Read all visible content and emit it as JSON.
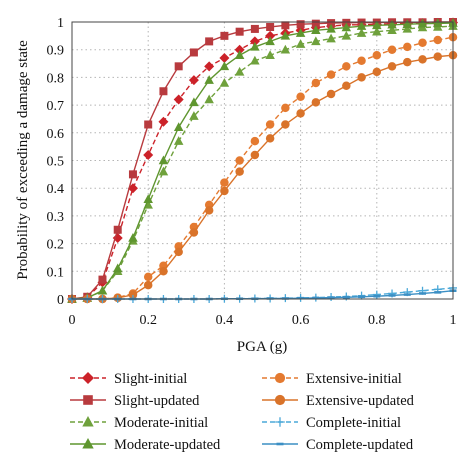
{
  "chart_data": {
    "type": "line",
    "title": "",
    "xlabel": "PGA (g)",
    "ylabel": "Probability of exceeding a damage state",
    "xlim": [
      0,
      1
    ],
    "ylim": [
      0,
      1
    ],
    "xticks": [
      0,
      0.2,
      0.4,
      0.6,
      0.8,
      1
    ],
    "xtick_labels": [
      "0",
      "0.2",
      "0.4",
      "0.6",
      "0.8",
      "1"
    ],
    "yticks": [
      0,
      0.1,
      0.2,
      0.3,
      0.4,
      0.5,
      0.6,
      0.7,
      0.8,
      0.9,
      1
    ],
    "ytick_labels": [
      "0",
      "0.1",
      "0.2",
      "0.3",
      "0.4",
      "0.5",
      "0.6",
      "0.7",
      "0.8",
      "0.9",
      "1"
    ],
    "grid": true,
    "legend_position": "bottom",
    "x": [
      0,
      0.04,
      0.08,
      0.12,
      0.16,
      0.2,
      0.24,
      0.28,
      0.32,
      0.36,
      0.4,
      0.44,
      0.48,
      0.52,
      0.56,
      0.6,
      0.64,
      0.68,
      0.72,
      0.76,
      0.8,
      0.84,
      0.88,
      0.92,
      0.96,
      1.0
    ],
    "series": [
      {
        "name": "Slight-initial",
        "color": "#cc2229",
        "marker": "diamond",
        "dash": true,
        "values": [
          0.0,
          0.006,
          0.06,
          0.22,
          0.4,
          0.52,
          0.64,
          0.72,
          0.79,
          0.84,
          0.87,
          0.9,
          0.93,
          0.95,
          0.96,
          0.97,
          0.98,
          0.985,
          0.99,
          0.99,
          0.992,
          0.994,
          0.995,
          0.996,
          0.997,
          0.998
        ]
      },
      {
        "name": "Slight-updated",
        "color": "#b83a3e",
        "marker": "square",
        "dash": false,
        "values": [
          0.0,
          0.008,
          0.07,
          0.25,
          0.45,
          0.63,
          0.75,
          0.84,
          0.89,
          0.93,
          0.95,
          0.965,
          0.975,
          0.982,
          0.988,
          0.992,
          0.994,
          0.996,
          0.997,
          0.998,
          0.998,
          0.999,
          0.999,
          0.999,
          1.0,
          1.0
        ]
      },
      {
        "name": "Moderate-initial",
        "color": "#6fa13c",
        "marker": "triangle",
        "dash": true,
        "values": [
          0.0,
          0.003,
          0.03,
          0.1,
          0.21,
          0.34,
          0.46,
          0.57,
          0.66,
          0.72,
          0.78,
          0.82,
          0.86,
          0.88,
          0.9,
          0.92,
          0.93,
          0.94,
          0.95,
          0.96,
          0.965,
          0.97,
          0.975,
          0.98,
          0.982,
          0.985
        ]
      },
      {
        "name": "Moderate-updated",
        "color": "#5f962f",
        "marker": "triangle",
        "dash": false,
        "values": [
          0.0,
          0.004,
          0.03,
          0.11,
          0.22,
          0.36,
          0.5,
          0.62,
          0.71,
          0.79,
          0.84,
          0.88,
          0.91,
          0.93,
          0.95,
          0.96,
          0.97,
          0.975,
          0.98,
          0.985,
          0.988,
          0.99,
          0.992,
          0.994,
          0.995,
          0.996
        ]
      },
      {
        "name": "Extensive-initial",
        "color": "#e47a30",
        "marker": "circle",
        "dash": true,
        "values": [
          0.0,
          0.0,
          0.0,
          0.005,
          0.02,
          0.08,
          0.12,
          0.19,
          0.26,
          0.34,
          0.42,
          0.5,
          0.57,
          0.63,
          0.69,
          0.73,
          0.78,
          0.81,
          0.84,
          0.86,
          0.88,
          0.9,
          0.91,
          0.925,
          0.935,
          0.945
        ]
      },
      {
        "name": "Extensive-updated",
        "color": "#d9732a",
        "marker": "circle",
        "dash": false,
        "values": [
          0.0,
          0.0,
          0.0,
          0.004,
          0.015,
          0.05,
          0.1,
          0.17,
          0.24,
          0.32,
          0.39,
          0.46,
          0.52,
          0.58,
          0.63,
          0.67,
          0.71,
          0.74,
          0.77,
          0.8,
          0.82,
          0.84,
          0.855,
          0.865,
          0.875,
          0.88
        ]
      },
      {
        "name": "Complete-initial",
        "color": "#4aa8d8",
        "marker": "plus",
        "dash": true,
        "values": [
          0.0,
          0.0,
          0.0,
          0.0,
          0.0,
          0.0,
          0.0,
          0.0,
          0.0,
          0.0,
          0.001,
          0.001,
          0.002,
          0.002,
          0.003,
          0.004,
          0.005,
          0.007,
          0.009,
          0.012,
          0.016,
          0.02,
          0.025,
          0.03,
          0.035,
          0.04
        ]
      },
      {
        "name": "Complete-updated",
        "color": "#3b8fc4",
        "marker": "dash",
        "dash": false,
        "values": [
          0.0,
          0.0,
          0.0,
          0.0,
          0.0,
          0.0,
          0.0,
          0.0,
          0.0,
          0.0,
          0.001,
          0.001,
          0.001,
          0.002,
          0.002,
          0.003,
          0.004,
          0.005,
          0.006,
          0.008,
          0.01,
          0.013,
          0.016,
          0.02,
          0.024,
          0.03
        ]
      }
    ]
  }
}
